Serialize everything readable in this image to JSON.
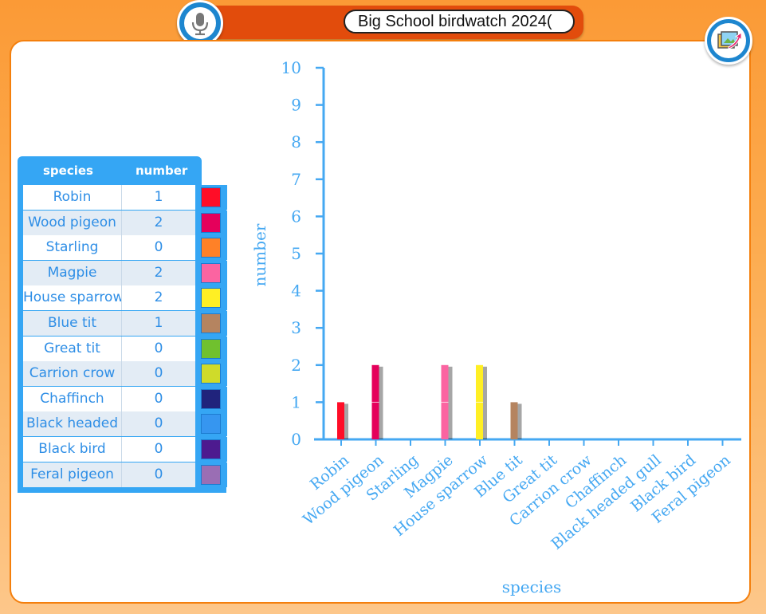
{
  "toolbar": {
    "title_value": "Big School birdwatch 2024(",
    "mic_icon": "microphone-icon",
    "export_icon": "export-image-icon"
  },
  "table": {
    "headers": {
      "species": "species",
      "number": "number"
    },
    "rows": [
      {
        "species": "Robin",
        "number": "1",
        "color": "#ff0d27"
      },
      {
        "species": "Wood pigeon",
        "number": "2",
        "color": "#e5005b"
      },
      {
        "species": "Starling",
        "number": "0",
        "color": "#ff8127"
      },
      {
        "species": "Magpie",
        "number": "2",
        "color": "#fb64a1"
      },
      {
        "species": "House sparrow",
        "number": "2",
        "color": "#ffef24"
      },
      {
        "species": "Blue tit",
        "number": "1",
        "color": "#b58460"
      },
      {
        "species": "Great tit",
        "number": "0",
        "color": "#70c12e"
      },
      {
        "species": "Carrion crow",
        "number": "0",
        "color": "#cfdb2a"
      },
      {
        "species": "Chaffinch",
        "number": "0",
        "color": "#20237c"
      },
      {
        "species": "Black headed",
        "number": "0",
        "color": "#3696f0"
      },
      {
        "species": "Black bird",
        "number": "0",
        "color": "#4d1a8f"
      },
      {
        "species": "Feral pigeon",
        "number": "0",
        "color": "#9a6eb4"
      }
    ]
  },
  "chart_data": {
    "type": "bar",
    "xlabel": "species",
    "ylabel": "number",
    "ylim": [
      0,
      10
    ],
    "yticks": [
      "0",
      "1",
      "2",
      "3",
      "4",
      "5",
      "6",
      "7",
      "8",
      "9",
      "10"
    ],
    "categories": [
      "Robin",
      "Wood pigeon",
      "Starling",
      "Magpie",
      "House sparrow",
      "Blue tit",
      "Great tit",
      "Carrion crow",
      "Chaffinch",
      "Black headed gull",
      "Black bird",
      "Feral pigeon"
    ],
    "values": [
      1,
      2,
      0,
      2,
      2,
      1,
      0,
      0,
      0,
      0,
      0,
      0
    ],
    "colors": [
      "#ff0d27",
      "#e5005b",
      "#ff8127",
      "#fb64a1",
      "#ffef24",
      "#b58460",
      "#70c12e",
      "#cfdb2a",
      "#20237c",
      "#3696f0",
      "#4d1a8f",
      "#9a6eb4"
    ],
    "axis_color": "#45a8f2"
  }
}
